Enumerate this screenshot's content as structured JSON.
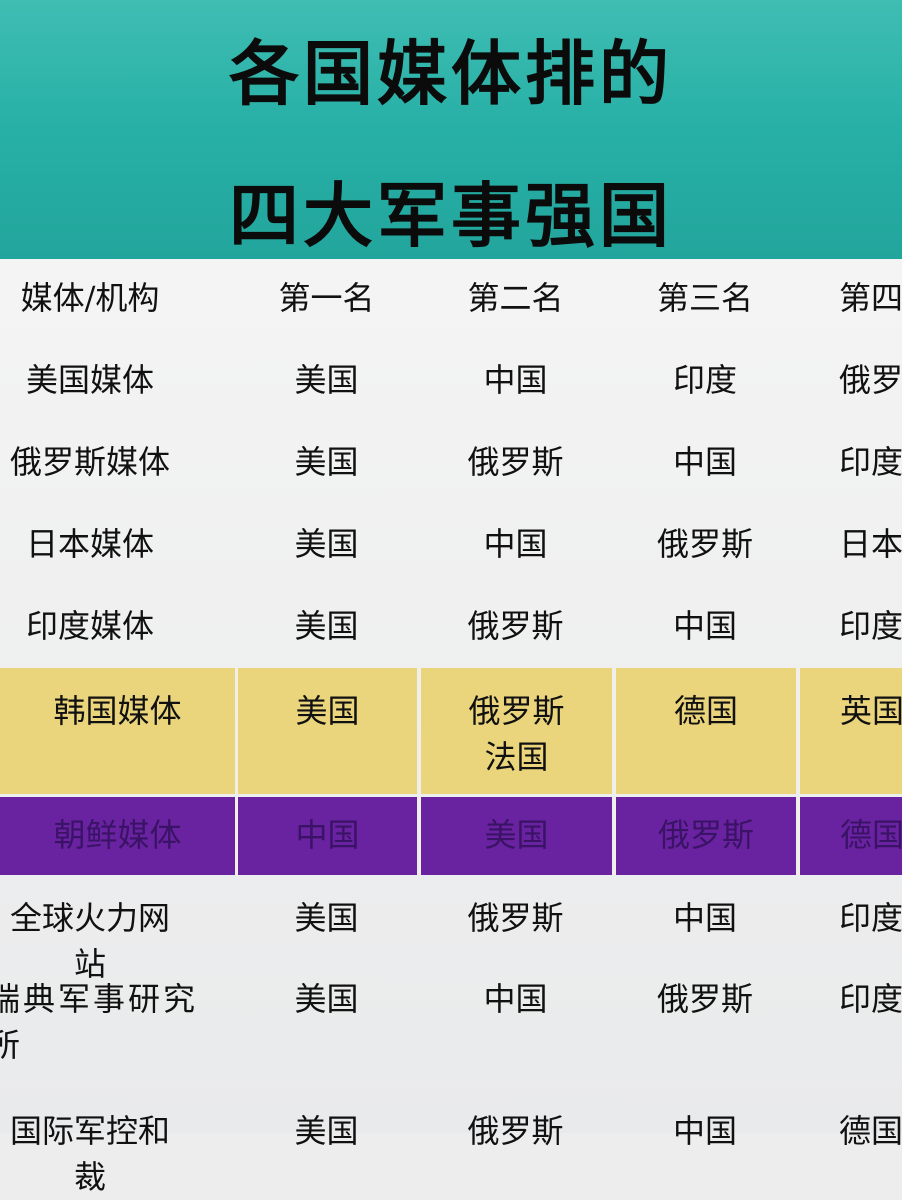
{
  "title": {
    "line1": "各国媒体排的",
    "line2": "四大军事强国"
  },
  "colors": {
    "banner": "#27b0a6",
    "highlight_korea": "#ebd57c",
    "highlight_north_korea": "#6a23a0"
  },
  "table": {
    "headers": [
      "媒体/机构",
      "第一名",
      "第二名",
      "第三名",
      "第四"
    ],
    "rows": [
      {
        "cells": [
          "美国媒体",
          "美国",
          "中国",
          "印度",
          "俄罗"
        ]
      },
      {
        "cells": [
          "俄罗斯媒体",
          "美国",
          "俄罗斯",
          "中国",
          "印度"
        ]
      },
      {
        "cells": [
          "日本媒体",
          "美国",
          "中国",
          "俄罗斯",
          "日本"
        ]
      },
      {
        "cells": [
          "印度媒体",
          "美国",
          "俄罗斯",
          "中国",
          "印度"
        ]
      },
      {
        "cells": [
          "韩国媒体",
          "美国",
          "俄罗斯\n法国",
          "德国",
          "英国"
        ]
      },
      {
        "cells": [
          "朝鲜媒体",
          "中国",
          "美国",
          "俄罗斯",
          "德国"
        ]
      },
      {
        "cells": [
          "全球火力网站",
          "美国",
          "俄罗斯",
          "中国",
          "印度"
        ]
      },
      {
        "cells": [
          "瑞典军事研究所",
          "美国",
          "中国",
          "俄罗斯",
          "印度"
        ]
      },
      {
        "cells": [
          "国际军控和裁",
          "美国",
          "俄罗斯",
          "中国",
          "德国"
        ]
      }
    ]
  }
}
